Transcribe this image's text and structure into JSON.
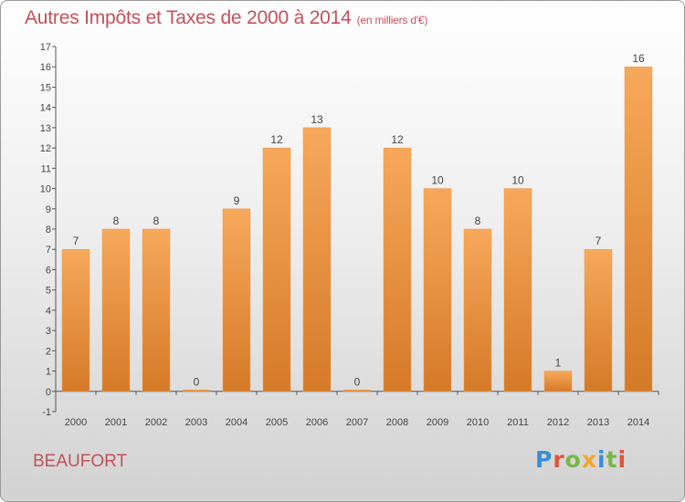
{
  "page": {
    "title": "Autres Impôts et Taxes de 2000 à 2014",
    "unit": "(en milliers d'€)",
    "place": "BEAUFORT",
    "logo_text": "Proxiti",
    "logo_colors": [
      "#3a8fd6",
      "#e0533a",
      "#7ab648",
      "#f2a52a",
      "#3a8fd6",
      "#7ab648",
      "#e0533a"
    ]
  },
  "colors": {
    "title": "#c4505a",
    "bar_top": "#f6a85a",
    "bar_bottom": "#d47a28"
  },
  "chart_data": {
    "type": "bar",
    "categories": [
      "2000",
      "2001",
      "2002",
      "2003",
      "2004",
      "2005",
      "2006",
      "2007",
      "2008",
      "2009",
      "2010",
      "2011",
      "2012",
      "2013",
      "2014"
    ],
    "values": [
      7,
      8,
      8,
      0,
      9,
      12,
      13,
      0,
      12,
      10,
      8,
      10,
      1,
      7,
      16
    ],
    "ylim": [
      -1,
      17
    ],
    "yticks": [
      -1,
      0,
      1,
      2,
      3,
      4,
      5,
      6,
      7,
      8,
      9,
      10,
      11,
      12,
      13,
      14,
      15,
      16,
      17
    ],
    "grid": false,
    "xlabel": "",
    "ylabel": ""
  }
}
